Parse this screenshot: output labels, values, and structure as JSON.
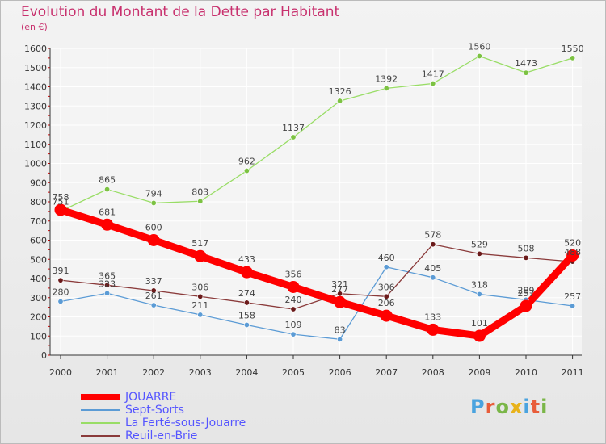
{
  "title": "Evolution du Montant de la Dette par Habitant",
  "subtitle": "(en €)",
  "logo": "Proxiti",
  "logo_colors": [
    "#4aa3df",
    "#e85d3a",
    "#7ab648",
    "#e8b21a",
    "#4aa3df",
    "#e85d3a",
    "#7ab648"
  ],
  "chart_data": {
    "type": "line",
    "x": [
      "2000",
      "2001",
      "2002",
      "2003",
      "2004",
      "2005",
      "2006",
      "2007",
      "2008",
      "2009",
      "2010",
      "2011"
    ],
    "ylim": [
      0,
      1600
    ],
    "yticks": [
      0,
      100,
      200,
      300,
      400,
      500,
      600,
      700,
      800,
      900,
      1000,
      1100,
      1200,
      1300,
      1400,
      1500,
      1600
    ],
    "grid": true,
    "legend_position": "bottom-left",
    "series": [
      {
        "name": "JOUARRE",
        "color": "#ff0000",
        "point_color": "#ff0000",
        "emphasis": true,
        "values": [
          758,
          681,
          600,
          517,
          433,
          356,
          277,
          206,
          133,
          101,
          257,
          520
        ]
      },
      {
        "name": "Sept-Sorts",
        "color": "#5b9bd5",
        "point_color": "#5b9bd5",
        "emphasis": false,
        "values": [
          280,
          323,
          261,
          211,
          158,
          109,
          83,
          460,
          405,
          318,
          289,
          257
        ]
      },
      {
        "name": "La Ferté-sous-Jouarre",
        "color": "#99dd66",
        "point_color": "#7cc242",
        "emphasis": false,
        "values": [
          751,
          865,
          794,
          803,
          962,
          1137,
          1326,
          1392,
          1417,
          1560,
          1473,
          1550
        ]
      },
      {
        "name": "Reuil-en-Brie",
        "color": "#8a3a3a",
        "point_color": "#6b1a1a",
        "emphasis": false,
        "values": [
          391,
          365,
          337,
          306,
          274,
          240,
          321,
          306,
          578,
          529,
          508,
          488
        ]
      }
    ]
  }
}
